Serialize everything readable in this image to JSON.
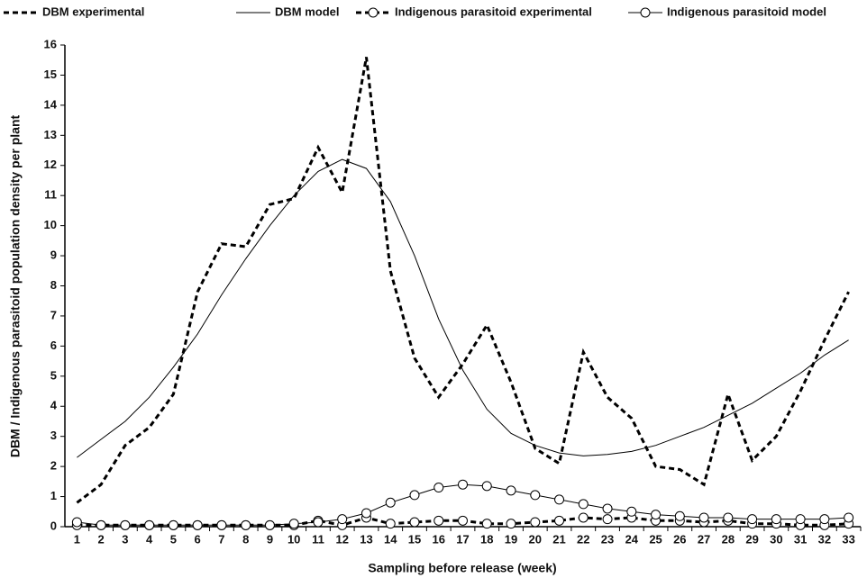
{
  "chart_data": {
    "type": "line",
    "x_label": "Sampling before release (week)",
    "y_label": "DBM / Indigenous parasitoid population density per plant",
    "categories": [
      "1",
      "2",
      "3",
      "4",
      "5",
      "6",
      "7",
      "8",
      "9",
      "10",
      "11",
      "12",
      "13",
      "14",
      "15",
      "16",
      "17",
      "18",
      "19",
      "20",
      "21",
      "22",
      "23",
      "24",
      "25",
      "26",
      "27",
      "28",
      "29",
      "30",
      "31",
      "32",
      "33"
    ],
    "ylim": [
      0,
      16
    ],
    "yticks": [
      0,
      1,
      2,
      3,
      4,
      5,
      6,
      7,
      8,
      9,
      10,
      11,
      12,
      13,
      14,
      15,
      16
    ],
    "grid": false,
    "legend": "top",
    "series": [
      {
        "name": "DBM experimental",
        "color": "#000000",
        "style": "dashed",
        "marker": "none",
        "values": [
          0.8,
          1.4,
          2.7,
          3.3,
          4.4,
          7.8,
          9.4,
          9.3,
          10.7,
          10.9,
          12.6,
          11.1,
          15.6,
          8.5,
          5.6,
          4.3,
          5.4,
          6.7,
          4.8,
          2.6,
          2.1,
          5.8,
          4.3,
          3.6,
          2.0,
          1.9,
          1.4,
          4.4,
          2.2,
          3.0,
          4.5,
          6.2,
          7.8
        ]
      },
      {
        "name": "DBM model",
        "color": "#000000",
        "style": "solid",
        "marker": "none",
        "values": [
          2.3,
          2.9,
          3.5,
          4.3,
          5.3,
          6.4,
          7.7,
          8.9,
          10.0,
          11.0,
          11.8,
          12.2,
          11.9,
          10.8,
          9.0,
          6.9,
          5.2,
          3.9,
          3.1,
          2.7,
          2.45,
          2.35,
          2.4,
          2.5,
          2.7,
          3.0,
          3.3,
          3.7,
          4.1,
          4.6,
          5.1,
          5.7,
          6.2
        ]
      },
      {
        "name": "Indigenous parasitoid experimental",
        "color": "#000000",
        "style": "dashed",
        "marker": "circle",
        "values": [
          0.05,
          0.05,
          0.05,
          0.05,
          0.05,
          0.05,
          0.05,
          0.05,
          0.05,
          0.05,
          0.2,
          0.05,
          0.3,
          0.1,
          0.15,
          0.2,
          0.2,
          0.1,
          0.1,
          0.15,
          0.2,
          0.3,
          0.25,
          0.3,
          0.2,
          0.2,
          0.15,
          0.2,
          0.1,
          0.1,
          0.05,
          0.05,
          0.1
        ]
      },
      {
        "name": "Indigenous parasitoid model",
        "color": "#000000",
        "style": "solid",
        "marker": "circle",
        "values": [
          0.15,
          0.05,
          0.05,
          0.05,
          0.05,
          0.05,
          0.05,
          0.05,
          0.05,
          0.1,
          0.15,
          0.25,
          0.45,
          0.8,
          1.05,
          1.3,
          1.4,
          1.35,
          1.2,
          1.05,
          0.9,
          0.75,
          0.6,
          0.5,
          0.4,
          0.35,
          0.3,
          0.3,
          0.25,
          0.25,
          0.25,
          0.25,
          0.3
        ]
      }
    ]
  }
}
